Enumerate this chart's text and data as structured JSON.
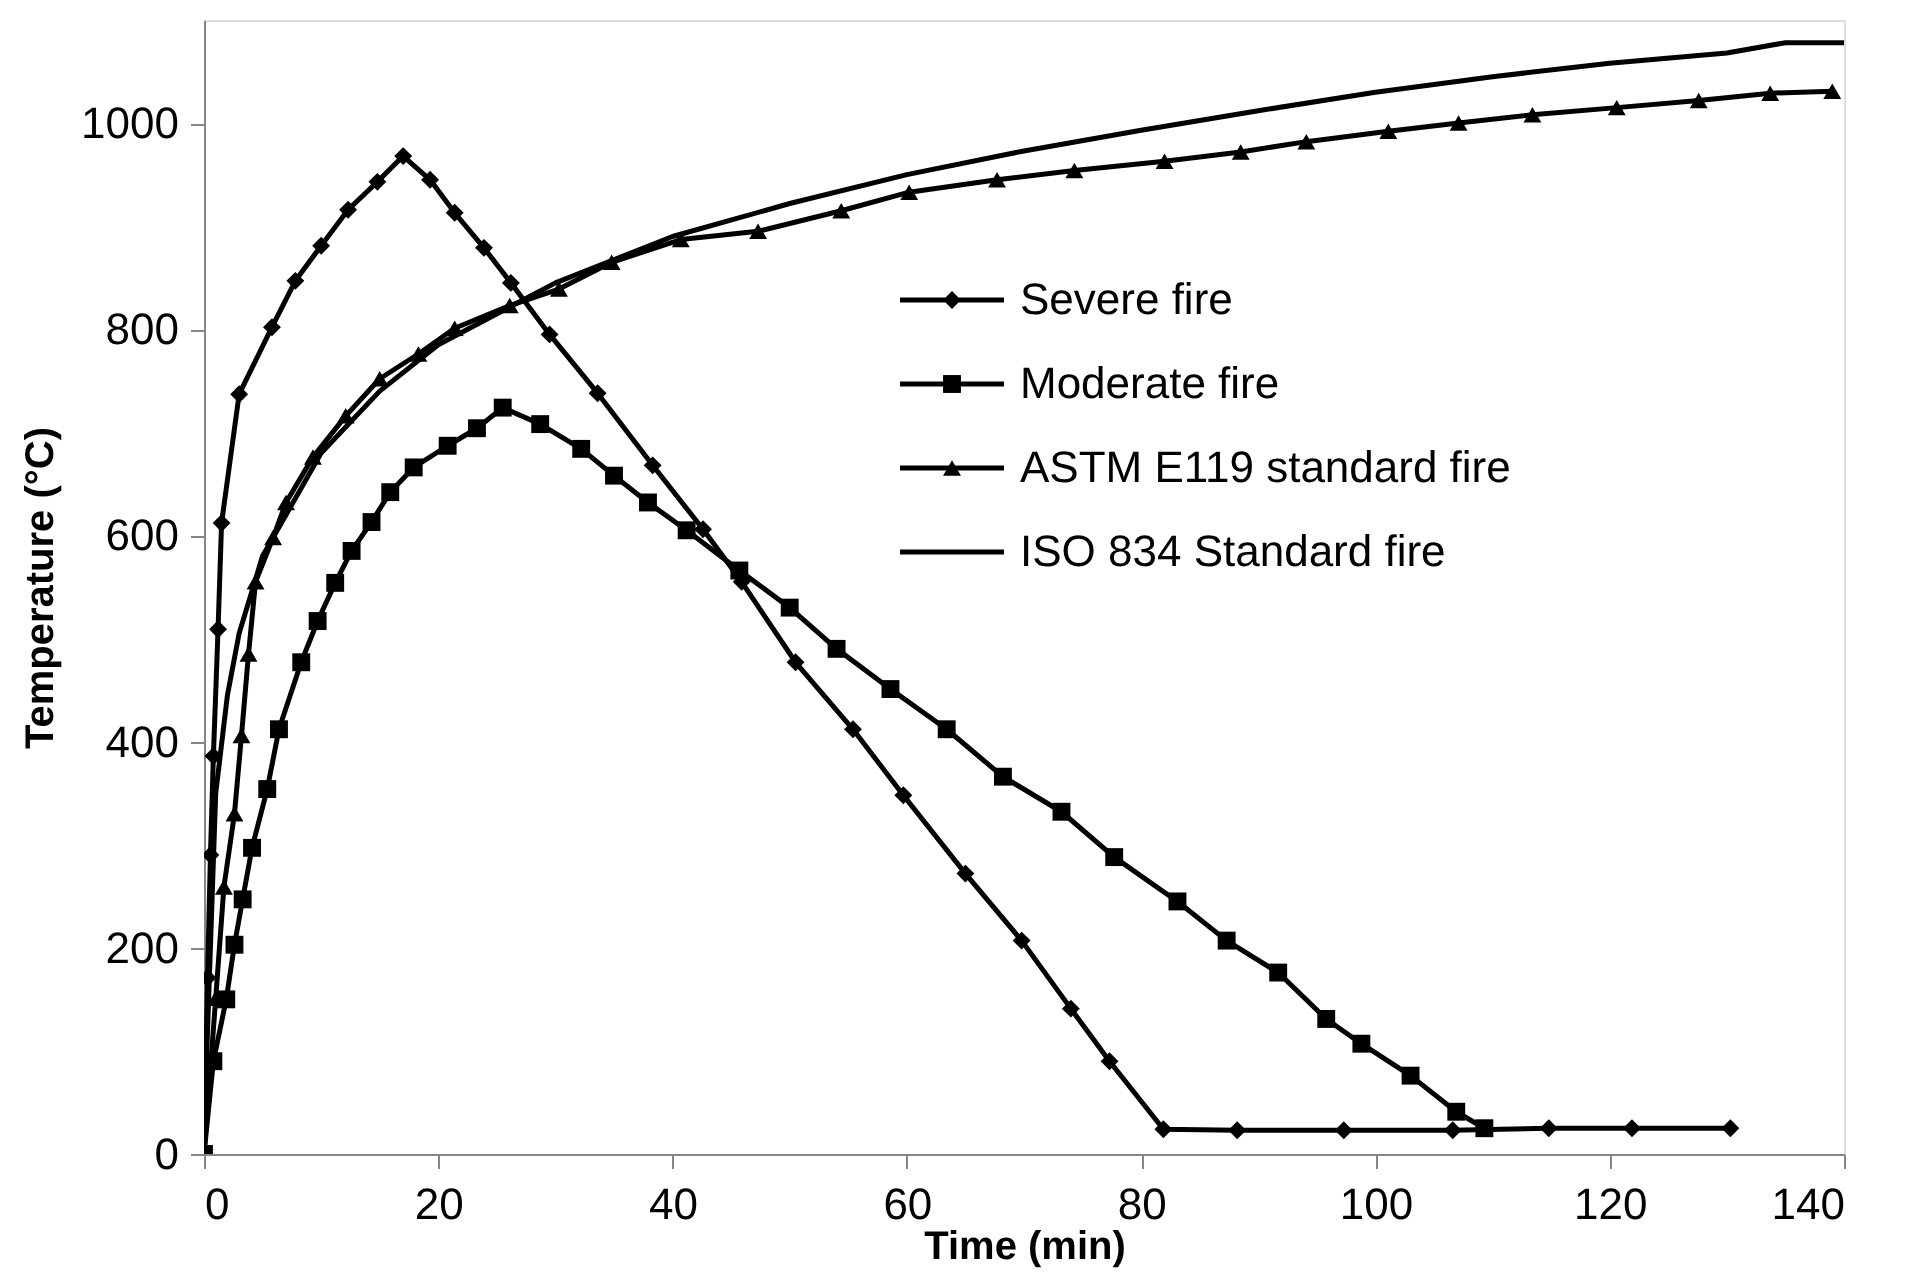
{
  "chart_data": {
    "type": "line",
    "xlabel": "Time (min)",
    "ylabel": "Temperature (°C)",
    "xlim": [
      0,
      140
    ],
    "xticks": [
      0,
      20,
      40,
      60,
      80,
      100,
      120,
      140
    ],
    "ylim": [
      0,
      1100
    ],
    "yticks": [
      0,
      200,
      400,
      600,
      800,
      {
        "value": 1000,
        "label": "1000"
      }
    ],
    "grid": false,
    "legend": "right",
    "line_style": "solid",
    "series": [
      {
        "name": "Severe fire",
        "color": "#000000",
        "marker": "diamond",
        "x": [
          0,
          0.3,
          0.55,
          0.8,
          1.2,
          1.5,
          3.0,
          5.8,
          7.8,
          10.0,
          12.3,
          14.8,
          17.0,
          19.3,
          21.4,
          23.9,
          26.2,
          29.5,
          33.6,
          38.3,
          42.6,
          45.9,
          50.5,
          55.4,
          59.7,
          65.0,
          69.8,
          74.0,
          77.3,
          81.9,
          88.2,
          97.3,
          106.6,
          114.8,
          121.9,
          130.3
        ],
        "values": [
          0,
          171,
          290,
          386,
          509,
          612,
          737,
          802,
          847,
          881,
          916,
          943,
          968,
          945,
          913,
          879,
          845,
          795,
          738,
          668,
          606,
          555,
          477,
          412,
          348,
          272,
          207,
          141,
          90,
          24,
          23,
          23,
          23,
          25,
          25,
          25
        ]
      },
      {
        "name": "Moderate fire",
        "color": "#000000",
        "marker": "square",
        "x": [
          0,
          0.8,
          1.9,
          2.6,
          3.3,
          4.1,
          5.4,
          6.4,
          8.3,
          9.7,
          11.2,
          12.6,
          14.3,
          15.9,
          17.9,
          20.8,
          23.3,
          25.5,
          28.7,
          32.2,
          35.0,
          37.9,
          41.2,
          45.7,
          50.0,
          54.0,
          58.6,
          63.4,
          68.2,
          73.2,
          77.7,
          83.1,
          87.3,
          91.7,
          95.8,
          98.8,
          103.0,
          106.9,
          109.3
        ],
        "values": [
          0,
          90,
          150,
          203,
          247,
          297,
          354,
          412,
          477,
          517,
          554,
          585,
          613,
          642,
          666,
          687,
          704,
          724,
          708,
          684,
          658,
          632,
          605,
          566,
          530,
          490,
          451,
          412,
          366,
          332,
          288,
          245,
          207,
          176,
          131,
          107,
          76,
          41,
          25
        ]
      },
      {
        "name": "ASTM E119 standard fire",
        "color": "#000000",
        "marker": "triangle",
        "x": [
          0,
          1.0,
          1.7,
          2.6,
          3.2,
          3.8,
          4.4,
          5.9,
          7.0,
          9.3,
          12.1,
          15.0,
          18.3,
          21.4,
          26.1,
          30.3,
          34.8,
          40.7,
          47.3,
          54.4,
          60.2,
          67.7,
          74.3,
          82.0,
          88.5,
          94.1,
          101.1,
          107.1,
          113.4,
          120.6,
          127.6,
          133.7,
          139.0
        ],
        "values": [
          0,
          151,
          259,
          330,
          406,
          485,
          555,
          598,
          632,
          676,
          716,
          752,
          776,
          801,
          823,
          839,
          865,
          887,
          895,
          915,
          933,
          945,
          954,
          963,
          972,
          982,
          992,
          1000,
          1008,
          1015,
          1022,
          1029,
          1031
        ]
      },
      {
        "name": "ISO 834 Standard fire",
        "color": "#000000",
        "marker": "none",
        "x": [
          0,
          1,
          2,
          3,
          5,
          10,
          15,
          20,
          30,
          40,
          50,
          60,
          70,
          80,
          90,
          100,
          110,
          120,
          130,
          135,
          140
        ],
        "values": [
          20,
          350,
          445,
          505,
          580,
          680,
          740,
          785,
          845,
          890,
          922,
          950,
          973,
          993,
          1012,
          1030,
          1045,
          1058,
          1068,
          1078,
          1078
        ]
      }
    ]
  }
}
